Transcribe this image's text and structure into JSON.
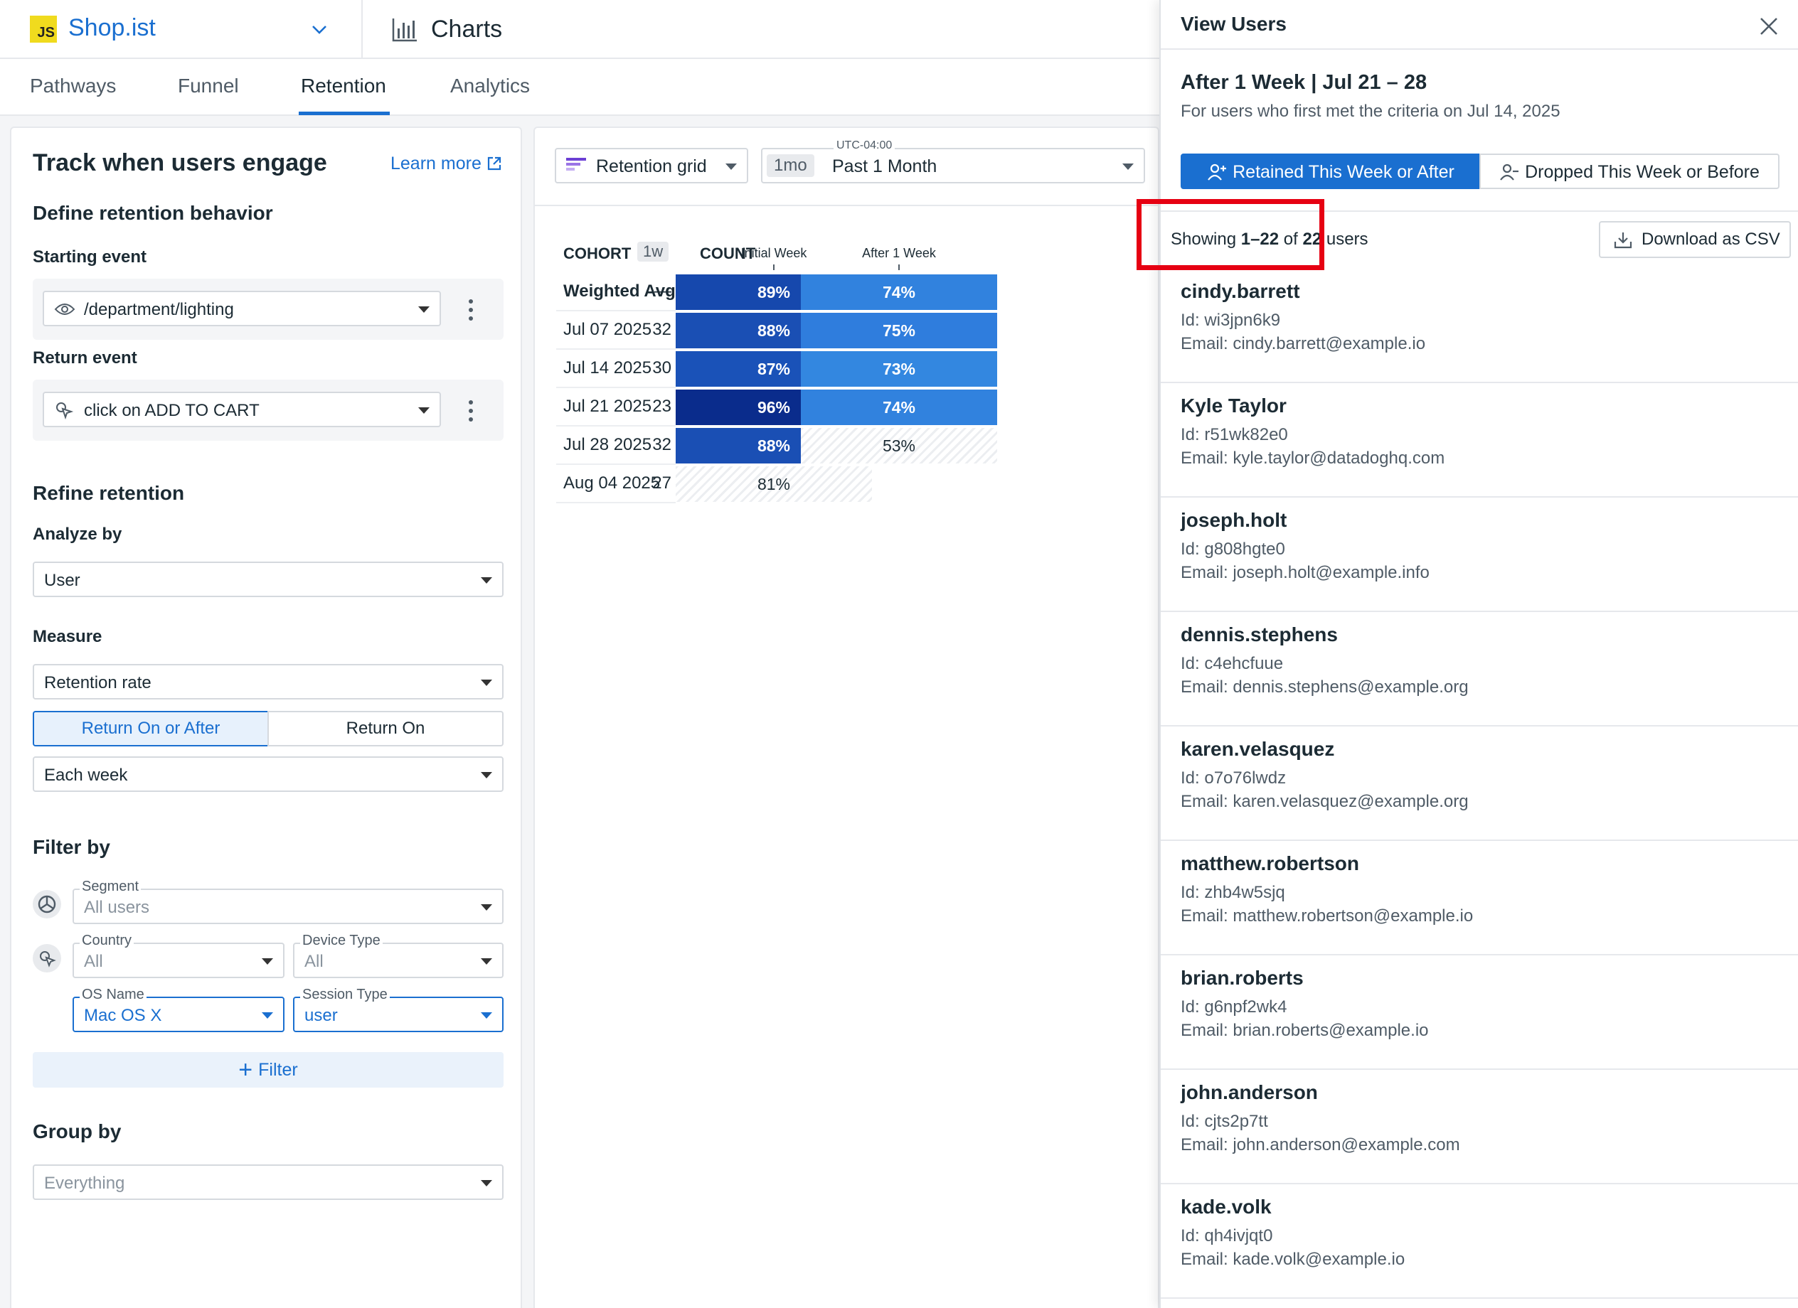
{
  "header": {
    "app_name": "Shop.ist",
    "logo_text": "JS",
    "section_title": "Charts"
  },
  "tabs": [
    {
      "label": "Pathways",
      "active": false
    },
    {
      "label": "Funnel",
      "active": false
    },
    {
      "label": "Retention",
      "active": true
    },
    {
      "label": "Analytics",
      "active": false
    }
  ],
  "config": {
    "title": "Track when users engage",
    "learn_more": "Learn more",
    "define_heading": "Define retention behavior",
    "starting_event_label": "Starting event",
    "starting_event_value": "/department/lighting",
    "return_event_label": "Return event",
    "return_event_value": "click on ADD TO CART",
    "refine_heading": "Refine retention",
    "analyze_label": "Analyze by",
    "analyze_value": "User",
    "measure_label": "Measure",
    "measure_value": "Retention rate",
    "return_mode_options": [
      "Return On or After",
      "Return On"
    ],
    "return_mode_selected": "Return On or After",
    "interval_value": "Each week",
    "filter_heading": "Filter by",
    "filters": {
      "segment": {
        "label": "Segment",
        "value": "All users"
      },
      "country": {
        "label": "Country",
        "value": "All"
      },
      "device_type": {
        "label": "Device Type",
        "value": "All"
      },
      "os_name": {
        "label": "OS Name",
        "value": "Mac OS X"
      },
      "session_type": {
        "label": "Session Type",
        "value": "user"
      }
    },
    "add_filter_label": "Filter",
    "group_heading": "Group by",
    "group_value": "Everything"
  },
  "chart_toolbar": {
    "viz_type": "Retention grid",
    "time_pill": "1mo",
    "time_range": "Past 1 Month",
    "timezone": "UTC-04:00"
  },
  "chart_data": {
    "type": "table",
    "header_cohort": "COHORT",
    "granularity": "1w",
    "header_count": "COUNT",
    "columns": [
      "Initial Week",
      "After 1 Week"
    ],
    "rows": [
      {
        "cohort": "Weighted Avg.",
        "count": "—",
        "values": [
          "89%",
          "74%"
        ],
        "bold": true
      },
      {
        "cohort": "Jul 07 2025",
        "count": "32",
        "values": [
          "88%",
          "75%"
        ]
      },
      {
        "cohort": "Jul 14 2025",
        "count": "30",
        "values": [
          "87%",
          "73%"
        ]
      },
      {
        "cohort": "Jul 21 2025",
        "count": "23",
        "values": [
          "96%",
          "74%"
        ]
      },
      {
        "cohort": "Jul 28 2025",
        "count": "32",
        "values": [
          "88%",
          "53%"
        ],
        "partial": [
          false,
          true
        ]
      },
      {
        "cohort": "Aug 04 2025",
        "count": "27",
        "values": [
          "81%",
          null
        ],
        "partial": [
          true,
          false
        ]
      }
    ],
    "colors": {
      "96%": "#0a2c8c",
      "89%": "#1648ad",
      "88%": "#1a4fb4",
      "87%": "#1a52b8",
      "75%": "#2f7ddd",
      "74%": "#3182de",
      "73%": "#3387e0"
    }
  },
  "drawer": {
    "title": "View Users",
    "subtitle": "After 1 Week | Jul 21 – 28",
    "description": "For users who first met the criteria on Jul 14, 2025",
    "toggle_on": "Retained This Week or After",
    "toggle_off": "Dropped This Week or Before",
    "showing_prefix": "Showing ",
    "showing_range": "1–22",
    "showing_mid": " of ",
    "showing_total": "22",
    "showing_suffix": " users",
    "download_label": "Download as CSV",
    "users": [
      {
        "name": "cindy.barrett",
        "id": "Id: wi3jpn6k9",
        "email": "Email: cindy.barrett@example.io"
      },
      {
        "name": "Kyle Taylor",
        "id": "Id: r51wk82e0",
        "email": "Email: kyle.taylor@datadoghq.com"
      },
      {
        "name": "joseph.holt",
        "id": "Id: g808hgte0",
        "email": "Email: joseph.holt@example.info"
      },
      {
        "name": "dennis.stephens",
        "id": "Id: c4ehcfuue",
        "email": "Email: dennis.stephens@example.org"
      },
      {
        "name": "karen.velasquez",
        "id": "Id: o7o76lwdz",
        "email": "Email: karen.velasquez@example.org"
      },
      {
        "name": "matthew.robertson",
        "id": "Id: zhb4w5sjq",
        "email": "Email: matthew.robertson@example.io"
      },
      {
        "name": "brian.roberts",
        "id": "Id: g6npf2wk4",
        "email": "Email: brian.roberts@example.io"
      },
      {
        "name": "john.anderson",
        "id": "Id: cjts2p7tt",
        "email": "Email: john.anderson@example.com"
      },
      {
        "name": "kade.volk",
        "id": "Id: qh4ivjqt0",
        "email": "Email: kade.volk@example.io"
      }
    ]
  },
  "colors": {
    "accent": "#1a6fd0",
    "highlight": "#e60012"
  }
}
